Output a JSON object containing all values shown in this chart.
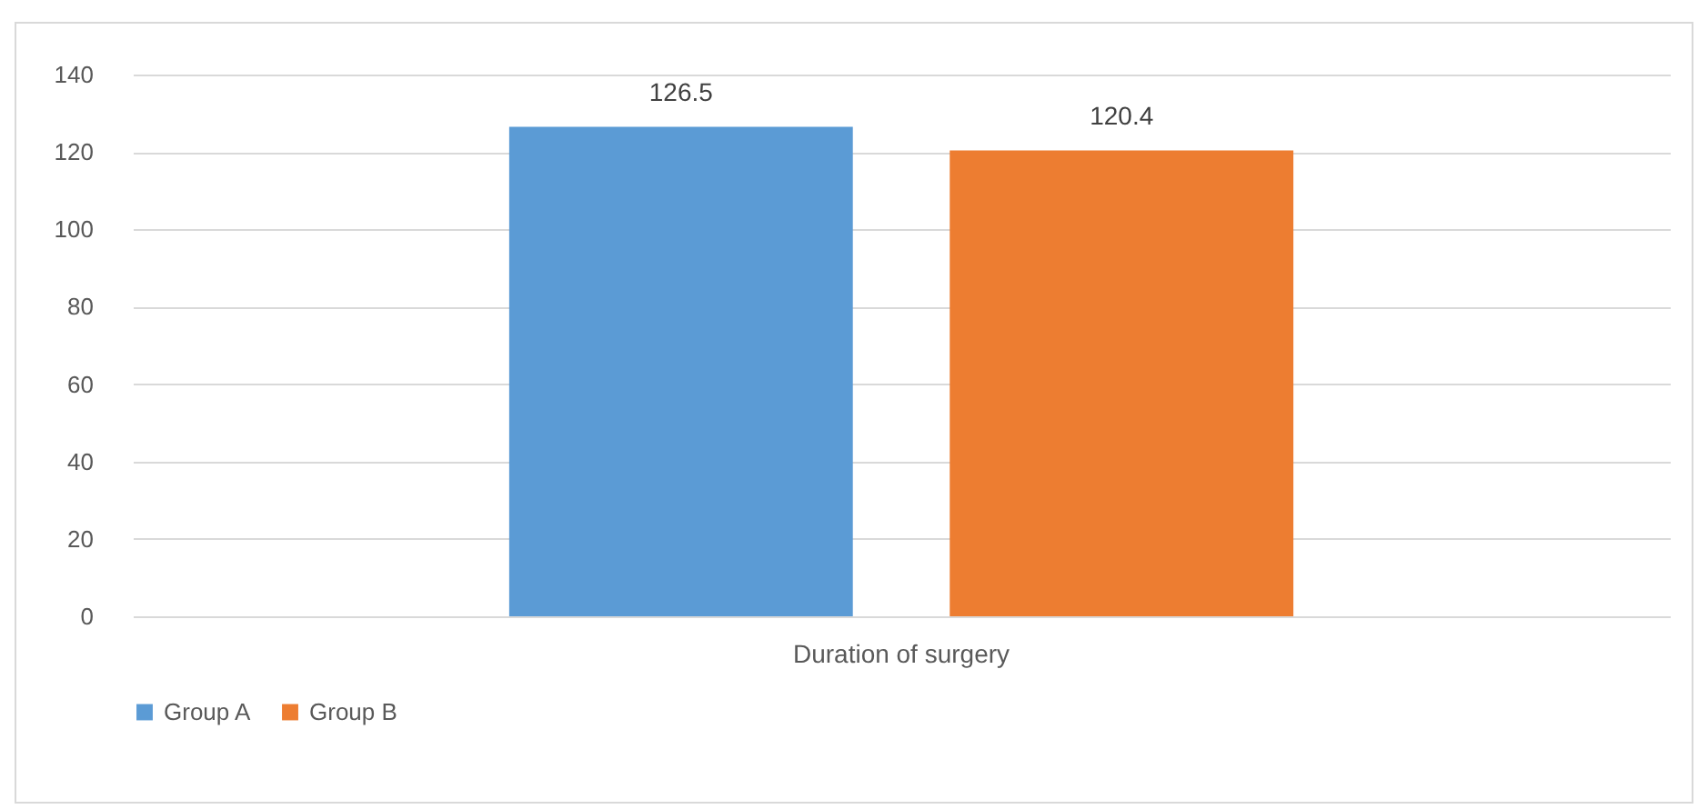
{
  "chart_data": {
    "type": "bar",
    "categories": [
      "Duration of surgery"
    ],
    "series": [
      {
        "name": "Group A",
        "color": "#5b9bd5",
        "values": [
          126.5
        ]
      },
      {
        "name": "Group B",
        "color": "#ed7d31",
        "values": [
          120.4
        ]
      }
    ],
    "ylim": [
      0,
      140
    ],
    "yticks": [
      0,
      20,
      40,
      60,
      80,
      100,
      120,
      140
    ],
    "grid": "y",
    "legend": "bottom",
    "data_labels": true
  }
}
